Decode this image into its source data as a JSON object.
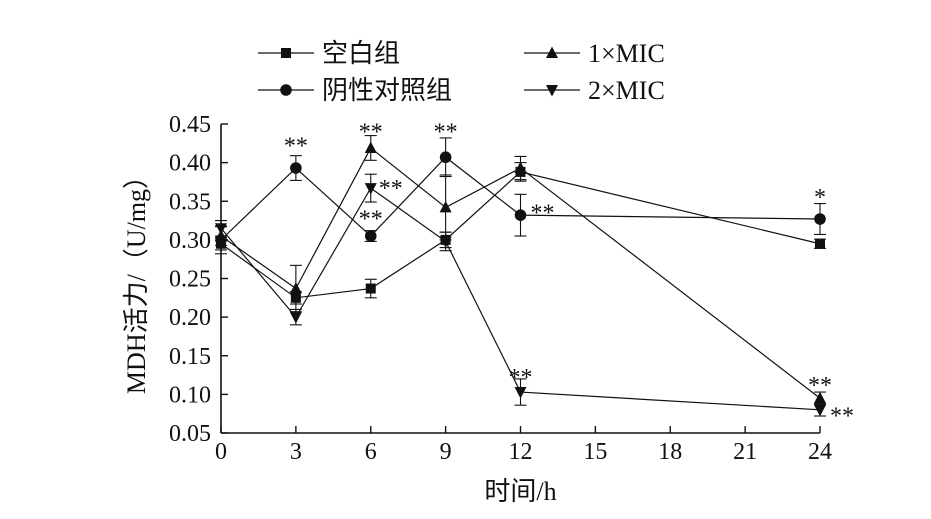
{
  "chart_data": {
    "type": "line",
    "xlabel": "时间/h",
    "ylabel": "MDH活力/（U/mg）",
    "x": [
      0,
      3,
      6,
      9,
      12,
      24
    ],
    "xticks": [
      "0",
      "3",
      "6",
      "9",
      "12",
      "15",
      "18",
      "21",
      "24"
    ],
    "xlim": [
      0,
      24
    ],
    "yticks": [
      "0.05",
      "0.10",
      "0.15",
      "0.20",
      "0.25",
      "0.30",
      "0.35",
      "0.40",
      "0.45"
    ],
    "ylim": [
      0.05,
      0.45
    ],
    "grid": false,
    "legend_position": "top",
    "series": [
      {
        "name": "空白组",
        "marker": "square",
        "values": [
          0.295,
          0.225,
          0.237,
          0.3,
          0.388,
          0.295
        ],
        "errors": [
          0.008,
          0.008,
          0.012,
          0.01,
          0.012,
          0.006
        ]
      },
      {
        "name": "阴性对照组",
        "marker": "circle",
        "values": [
          0.3,
          0.393,
          0.305,
          0.407,
          0.332,
          0.327
        ],
        "errors": [
          0.018,
          0.016,
          0.007,
          0.025,
          0.027,
          0.02
        ]
      },
      {
        "name": "1×MIC",
        "marker": "triangle-up",
        "values": [
          0.305,
          0.237,
          0.419,
          0.342,
          0.393,
          0.095
        ],
        "errors": [
          0.012,
          0.03,
          0.016,
          0.042,
          0.015,
          0.008
        ]
      },
      {
        "name": "2×MIC",
        "marker": "triangle-down",
        "values": [
          0.315,
          0.2,
          0.367,
          0.298,
          0.103,
          0.08
        ],
        "errors": [
          0.01,
          0.01,
          0.018,
          0.012,
          0.017,
          0.008
        ]
      }
    ],
    "annotations": [
      {
        "text": "**",
        "x": 3,
        "y": 0.425
      },
      {
        "text": "**",
        "x": 6,
        "y": 0.443
      },
      {
        "text": "**",
        "x": 9,
        "y": 0.443
      },
      {
        "text": "**",
        "x": 6,
        "y": 0.37
      },
      {
        "text": "**",
        "x": 6,
        "y": 0.33
      },
      {
        "text": "**",
        "x": 12,
        "y": 0.338
      },
      {
        "text": "**",
        "x": 12,
        "y": 0.125
      },
      {
        "text": "*",
        "x": 24,
        "y": 0.358
      },
      {
        "text": "**",
        "x": 24,
        "y": 0.115
      },
      {
        "text": "**",
        "x": 24,
        "y": 0.075
      }
    ]
  }
}
